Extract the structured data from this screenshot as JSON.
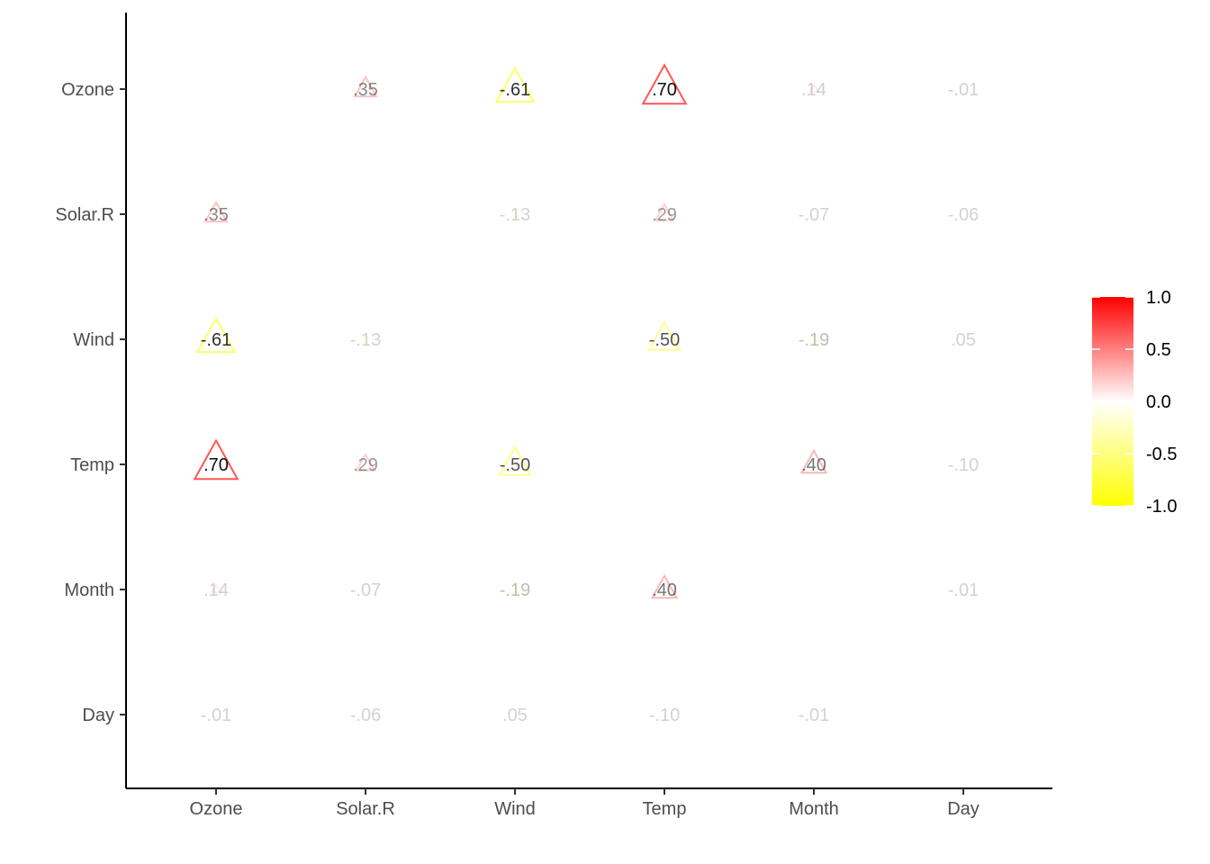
{
  "chart_data": {
    "type": "heatmap",
    "title": "",
    "xlabel": "",
    "ylabel": "",
    "marker": "triangle",
    "variables": [
      "Ozone",
      "Solar.R",
      "Wind",
      "Temp",
      "Month",
      "Day"
    ],
    "matrix": [
      [
        null,
        0.35,
        -0.61,
        0.7,
        0.14,
        -0.01
      ],
      [
        0.35,
        null,
        -0.13,
        0.29,
        -0.07,
        -0.06
      ],
      [
        -0.61,
        -0.13,
        null,
        -0.5,
        -0.19,
        0.05
      ],
      [
        0.7,
        0.29,
        -0.5,
        null,
        0.4,
        -0.1
      ],
      [
        0.14,
        -0.07,
        -0.19,
        0.4,
        null,
        -0.01
      ],
      [
        -0.01,
        -0.06,
        0.05,
        -0.1,
        -0.01,
        null
      ]
    ],
    "labels": [
      [
        null,
        ".35",
        "-.61",
        ".70",
        ".14",
        "-.01"
      ],
      [
        ".35",
        null,
        "-.13",
        ".29",
        "-.07",
        "-.06"
      ],
      [
        "-.61",
        "-.13",
        null,
        "-.50",
        "-.19",
        ".05"
      ],
      [
        ".70",
        ".29",
        "-.50",
        null,
        ".40",
        "-.10"
      ],
      [
        ".14",
        "-.07",
        "-.19",
        ".40",
        null,
        "-.01"
      ],
      [
        "-.01",
        "-.06",
        ".05",
        "-.10",
        "-.01",
        null
      ]
    ],
    "color_scale": {
      "low": "#ffff00",
      "mid": "#ffffff",
      "high": "#ff0000",
      "limits": [
        -1,
        1
      ],
      "ticks": [
        "1.0",
        "0.5",
        "0.0",
        "-0.5",
        "-1.0"
      ]
    },
    "legend_position": "right",
    "grid": false
  }
}
